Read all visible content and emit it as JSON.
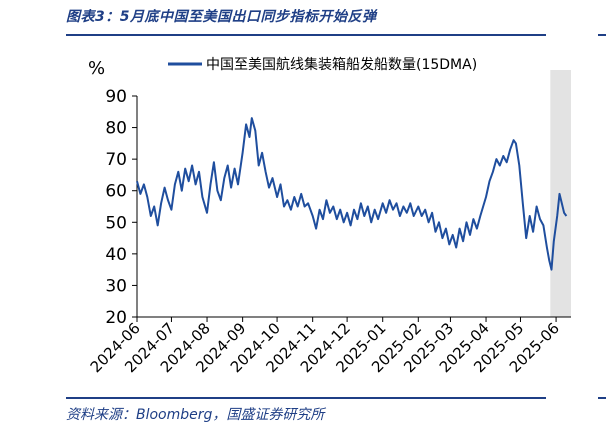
{
  "header": {
    "title": "图表3：5月底中国至美国出口同步指标开始反弹"
  },
  "footer": {
    "source": "资料来源：Bloomberg，国盛证券研究所"
  },
  "colors": {
    "accent": "#1f3f86",
    "series": "#1f4e9e",
    "shade": "#e3e3e3"
  },
  "chart_data": {
    "type": "line",
    "title": "",
    "unit_label": "%",
    "ylim": [
      20,
      90
    ],
    "yticks": [
      20,
      30,
      40,
      50,
      60,
      70,
      80,
      90
    ],
    "xlim": [
      "2024-06-01",
      "2025-06-14"
    ],
    "xticks": [
      "2024-06",
      "2024-07",
      "2024-08",
      "2024-09",
      "2024-10",
      "2024-11",
      "2024-12",
      "2025-01",
      "2025-02",
      "2025-03",
      "2025-04",
      "2025-05",
      "2025-06"
    ],
    "grid": false,
    "legend": "top-center",
    "shaded_region": [
      "2025-05-27",
      "2025-06-14"
    ],
    "series": [
      {
        "name": "中国至美国航线集装箱船发船数量(15DMA)",
        "points": [
          [
            "2024-06-01",
            63
          ],
          [
            "2024-06-04",
            59
          ],
          [
            "2024-06-07",
            62
          ],
          [
            "2024-06-10",
            58
          ],
          [
            "2024-06-13",
            52
          ],
          [
            "2024-06-16",
            55
          ],
          [
            "2024-06-19",
            49
          ],
          [
            "2024-06-22",
            56
          ],
          [
            "2024-06-25",
            61
          ],
          [
            "2024-06-28",
            57
          ],
          [
            "2024-07-01",
            54
          ],
          [
            "2024-07-04",
            62
          ],
          [
            "2024-07-07",
            66
          ],
          [
            "2024-07-10",
            60
          ],
          [
            "2024-07-13",
            67
          ],
          [
            "2024-07-16",
            63
          ],
          [
            "2024-07-19",
            68
          ],
          [
            "2024-07-22",
            62
          ],
          [
            "2024-07-25",
            66
          ],
          [
            "2024-07-28",
            58
          ],
          [
            "2024-08-01",
            53
          ],
          [
            "2024-08-04",
            62
          ],
          [
            "2024-08-07",
            69
          ],
          [
            "2024-08-10",
            60
          ],
          [
            "2024-08-13",
            57
          ],
          [
            "2024-08-16",
            64
          ],
          [
            "2024-08-19",
            68
          ],
          [
            "2024-08-22",
            61
          ],
          [
            "2024-08-25",
            67
          ],
          [
            "2024-08-28",
            62
          ],
          [
            "2024-09-01",
            72
          ],
          [
            "2024-09-04",
            81
          ],
          [
            "2024-09-07",
            77
          ],
          [
            "2024-09-09",
            83
          ],
          [
            "2024-09-12",
            79
          ],
          [
            "2024-09-15",
            68
          ],
          [
            "2024-09-18",
            72
          ],
          [
            "2024-09-21",
            66
          ],
          [
            "2024-09-24",
            61
          ],
          [
            "2024-09-27",
            64
          ],
          [
            "2024-10-01",
            58
          ],
          [
            "2024-10-04",
            62
          ],
          [
            "2024-10-07",
            55
          ],
          [
            "2024-10-10",
            57
          ],
          [
            "2024-10-13",
            54
          ],
          [
            "2024-10-16",
            58
          ],
          [
            "2024-10-19",
            55
          ],
          [
            "2024-10-22",
            59
          ],
          [
            "2024-10-25",
            55
          ],
          [
            "2024-10-28",
            56
          ],
          [
            "2024-11-01",
            52
          ],
          [
            "2024-11-04",
            48
          ],
          [
            "2024-11-07",
            54
          ],
          [
            "2024-11-10",
            51
          ],
          [
            "2024-11-13",
            57
          ],
          [
            "2024-11-16",
            53
          ],
          [
            "2024-11-19",
            55
          ],
          [
            "2024-11-22",
            51
          ],
          [
            "2024-11-25",
            54
          ],
          [
            "2024-11-28",
            50
          ],
          [
            "2024-12-01",
            53
          ],
          [
            "2024-12-04",
            49
          ],
          [
            "2024-12-07",
            54
          ],
          [
            "2024-12-10",
            51
          ],
          [
            "2024-12-13",
            56
          ],
          [
            "2024-12-16",
            52
          ],
          [
            "2024-12-19",
            55
          ],
          [
            "2024-12-22",
            50
          ],
          [
            "2024-12-25",
            54
          ],
          [
            "2024-12-28",
            51
          ],
          [
            "2025-01-01",
            56
          ],
          [
            "2025-01-04",
            53
          ],
          [
            "2025-01-07",
            57
          ],
          [
            "2025-01-10",
            54
          ],
          [
            "2025-01-13",
            56
          ],
          [
            "2025-01-16",
            52
          ],
          [
            "2025-01-19",
            55
          ],
          [
            "2025-01-22",
            53
          ],
          [
            "2025-01-25",
            56
          ],
          [
            "2025-01-28",
            52
          ],
          [
            "2025-02-01",
            55
          ],
          [
            "2025-02-04",
            52
          ],
          [
            "2025-02-07",
            54
          ],
          [
            "2025-02-10",
            50
          ],
          [
            "2025-02-13",
            53
          ],
          [
            "2025-02-16",
            47
          ],
          [
            "2025-02-19",
            50
          ],
          [
            "2025-02-22",
            45
          ],
          [
            "2025-02-25",
            48
          ],
          [
            "2025-02-28",
            43
          ],
          [
            "2025-03-03",
            46
          ],
          [
            "2025-03-06",
            42
          ],
          [
            "2025-03-09",
            48
          ],
          [
            "2025-03-12",
            44
          ],
          [
            "2025-03-15",
            50
          ],
          [
            "2025-03-18",
            46
          ],
          [
            "2025-03-21",
            51
          ],
          [
            "2025-03-24",
            48
          ],
          [
            "2025-03-27",
            52
          ],
          [
            "2025-04-01",
            58
          ],
          [
            "2025-04-04",
            63
          ],
          [
            "2025-04-07",
            66
          ],
          [
            "2025-04-10",
            70
          ],
          [
            "2025-04-13",
            68
          ],
          [
            "2025-04-16",
            71
          ],
          [
            "2025-04-19",
            69
          ],
          [
            "2025-04-22",
            73
          ],
          [
            "2025-04-25",
            76
          ],
          [
            "2025-04-27",
            75
          ],
          [
            "2025-04-30",
            68
          ],
          [
            "2025-05-03",
            56
          ],
          [
            "2025-05-06",
            45
          ],
          [
            "2025-05-09",
            52
          ],
          [
            "2025-05-12",
            47
          ],
          [
            "2025-05-15",
            55
          ],
          [
            "2025-05-18",
            51
          ],
          [
            "2025-05-21",
            49
          ],
          [
            "2025-05-24",
            42
          ],
          [
            "2025-05-26",
            38
          ],
          [
            "2025-05-28",
            35
          ],
          [
            "2025-05-30",
            44
          ],
          [
            "2025-06-02",
            52
          ],
          [
            "2025-06-04",
            59
          ],
          [
            "2025-06-06",
            56
          ],
          [
            "2025-06-08",
            53
          ],
          [
            "2025-06-10",
            52
          ]
        ]
      }
    ]
  }
}
